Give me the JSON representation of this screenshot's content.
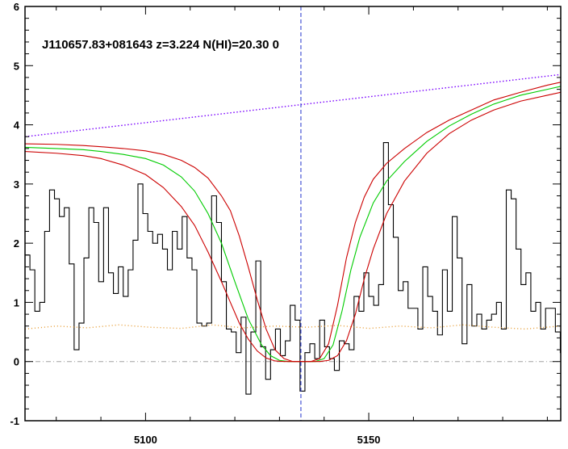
{
  "chart_data": {
    "type": "line",
    "title": "J110657.83+081643 z=3.224 N(HI)=20.30 0",
    "xlabel": "",
    "ylabel": "",
    "xlim": [
      5073,
      5193
    ],
    "ylim": [
      -1.0,
      6.0
    ],
    "xticks": [
      5100,
      5150
    ],
    "yticks": [
      -1,
      0,
      1,
      2,
      3,
      4,
      5,
      6
    ],
    "grid": false,
    "legend": "none",
    "vline_x": 5134.8,
    "zero_line_y": 0,
    "colors": {
      "flux": "#000000",
      "fit": "#00cc00",
      "fit_bounds": "#cc0000",
      "continuum": "#7a00ff",
      "error": "#e69a2e",
      "vline": "#2233cc",
      "zero_line": "#a0a0a0"
    },
    "series": [
      {
        "style": "step",
        "x": [
          5073,
          5074.1,
          5075.2,
          5076.3,
          5077.4,
          5078.5,
          5079.6,
          5080.7,
          5081.8,
          5082.9,
          5084,
          5085.1,
          5086.2,
          5087.3,
          5088.4,
          5089.5,
          5090.6,
          5091.7,
          5092.8,
          5093.9,
          5095,
          5096.1,
          5097.2,
          5098.3,
          5099.4,
          5100.5,
          5101.6,
          5102.7,
          5103.8,
          5104.9,
          5106,
          5107.1,
          5108.2,
          5109.3,
          5110.4,
          5111.5,
          5112.6,
          5113.7,
          5114.8,
          5115.9,
          5117,
          5118.1,
          5119.2,
          5120.3,
          5121.4,
          5122.5,
          5123.6,
          5124.7,
          5125.8,
          5126.9,
          5128,
          5129.1,
          5130.2,
          5131.3,
          5132.4,
          5133.5,
          5134.6,
          5135.7,
          5136.8,
          5137.9,
          5139,
          5140.1,
          5141.2,
          5142.3,
          5143.4,
          5144.5,
          5145.6,
          5146.7,
          5147.8,
          5148.9,
          5150,
          5151.1,
          5152.2,
          5153.3,
          5154.4,
          5155.5,
          5156.6,
          5157.7,
          5158.8,
          5159.9,
          5161,
          5162.1,
          5163.2,
          5164.3,
          5165.4,
          5166.5,
          5167.6,
          5168.7,
          5169.8,
          5170.9,
          5172,
          5173.1,
          5174.2,
          5175.3,
          5176.4,
          5177.5,
          5178.6,
          5179.7,
          5180.8,
          5181.9,
          5183,
          5184.1,
          5185.2,
          5186.3,
          5187.4,
          5188.5,
          5189.6,
          5190.7,
          5191.8,
          5192.9
        ],
        "values": [
          1.8,
          1.55,
          0.85,
          1.0,
          2.2,
          2.9,
          2.75,
          2.45,
          2.6,
          1.65,
          0.2,
          0.65,
          1.75,
          2.6,
          2.35,
          1.35,
          2.6,
          1.5,
          1.15,
          1.6,
          1.1,
          1.55,
          2.05,
          3.0,
          2.5,
          2.2,
          2.0,
          2.15,
          1.9,
          1.55,
          2.2,
          1.9,
          2.45,
          1.75,
          1.55,
          0.65,
          0.6,
          0.65,
          2.8,
          2.35,
          1.35,
          0.55,
          0.5,
          0.15,
          0.75,
          -0.55,
          0.5,
          1.7,
          0.25,
          -0.3,
          0.2,
          0.55,
          0.1,
          0.35,
          0.95,
          0.7,
          -0.5,
          0.15,
          0.3,
          0.05,
          0.7,
          0.25,
          0.05,
          -0.15,
          0.35,
          0.3,
          0.2,
          1.1,
          0.85,
          1.5,
          1.1,
          0.95,
          1.3,
          3.7,
          2.65,
          2.1,
          1.2,
          1.35,
          0.9,
          0.9,
          0.55,
          1.6,
          1.1,
          0.85,
          0.45,
          1.55,
          0.85,
          2.45,
          1.75,
          0.3,
          1.3,
          0.6,
          0.8,
          0.55,
          0.7,
          0.8,
          1.0,
          0.55,
          2.9,
          2.75,
          1.9,
          1.3,
          1.5,
          0.85,
          1.0,
          0.55,
          0.9,
          0.9,
          0.5,
          0.15
        ]
      },
      {
        "style": "smooth",
        "x": [
          5073,
          5080,
          5086,
          5090,
          5095,
          5100,
          5104,
          5108,
          5111,
          5114,
          5117,
          5120,
          5123,
          5126,
          5128,
          5130,
          5132,
          5134,
          5136,
          5138,
          5140,
          5142,
          5144,
          5146,
          5148,
          5151,
          5154,
          5158,
          5163,
          5168,
          5173,
          5178,
          5184,
          5190,
          5193
        ],
        "values": [
          3.62,
          3.6,
          3.58,
          3.55,
          3.5,
          3.43,
          3.32,
          3.12,
          2.88,
          2.5,
          2.0,
          1.35,
          0.72,
          0.28,
          0.1,
          0.02,
          0.0,
          0.0,
          0.0,
          0.0,
          0.05,
          0.28,
          0.85,
          1.55,
          2.1,
          2.68,
          3.05,
          3.38,
          3.72,
          3.98,
          4.18,
          4.35,
          4.5,
          4.6,
          4.65
        ]
      },
      {
        "style": "smooth",
        "x": [
          5073,
          5080,
          5086,
          5090,
          5095,
          5100,
          5104,
          5108,
          5111,
          5114,
          5117,
          5119,
          5121,
          5123,
          5125,
          5127,
          5129,
          5131,
          5133,
          5135,
          5137,
          5139,
          5141,
          5143,
          5145,
          5147,
          5149,
          5151,
          5154,
          5158,
          5163,
          5168,
          5173,
          5178,
          5184,
          5190,
          5193
        ],
        "values": [
          3.68,
          3.67,
          3.65,
          3.63,
          3.6,
          3.56,
          3.5,
          3.4,
          3.28,
          3.1,
          2.8,
          2.55,
          2.12,
          1.6,
          1.05,
          0.55,
          0.2,
          0.05,
          0.0,
          0.0,
          0.0,
          0.05,
          0.3,
          0.95,
          1.75,
          2.35,
          2.78,
          3.08,
          3.35,
          3.6,
          3.87,
          4.08,
          4.25,
          4.42,
          4.55,
          4.67,
          4.72
        ]
      },
      {
        "style": "smooth",
        "x": [
          5073,
          5080,
          5086,
          5090,
          5095,
          5100,
          5104,
          5108,
          5111,
          5114,
          5117,
          5119,
          5121,
          5123,
          5125,
          5127,
          5129,
          5131,
          5133,
          5135,
          5137,
          5139,
          5141,
          5143,
          5145,
          5147,
          5149,
          5151,
          5154,
          5158,
          5163,
          5168,
          5173,
          5178,
          5184,
          5190,
          5193
        ],
        "values": [
          3.55,
          3.52,
          3.48,
          3.43,
          3.32,
          3.16,
          2.94,
          2.62,
          2.3,
          1.85,
          1.35,
          1.0,
          0.65,
          0.38,
          0.18,
          0.06,
          0.01,
          0.0,
          0.0,
          0.0,
          0.0,
          0.0,
          0.02,
          0.1,
          0.35,
          0.8,
          1.4,
          1.9,
          2.5,
          3.05,
          3.52,
          3.85,
          4.08,
          4.25,
          4.4,
          4.5,
          4.55
        ]
      },
      {
        "style": "dotted",
        "x": [
          5073,
          5193
        ],
        "values": [
          3.8,
          4.85
        ]
      },
      {
        "style": "dotted",
        "x": [
          5073,
          5080,
          5087,
          5094,
          5101,
          5108,
          5115,
          5122,
          5129,
          5136,
          5143,
          5150,
          5157,
          5164,
          5171,
          5178,
          5185,
          5193
        ],
        "values": [
          0.55,
          0.6,
          0.57,
          0.62,
          0.58,
          0.56,
          0.62,
          0.57,
          0.6,
          0.58,
          0.61,
          0.56,
          0.6,
          0.57,
          0.62,
          0.58,
          0.55,
          0.6
        ]
      }
    ]
  }
}
